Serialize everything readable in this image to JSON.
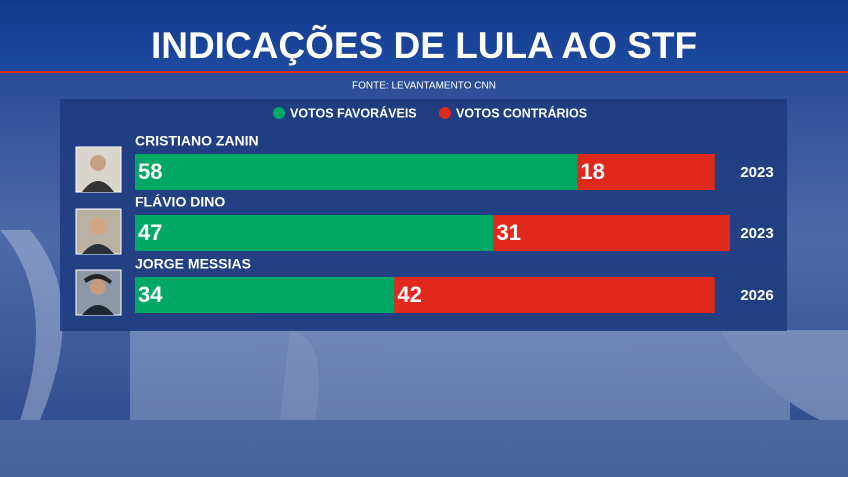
{
  "chart_data": {
    "type": "stacked-bar-horizontal",
    "title": "INDICAÇÕES DE LULA AO STF",
    "subtitle": "FONTE: LEVANTAMENTO CNN",
    "categories": [
      "CRISTIANO ZANIN",
      "FLÁVIO DINO",
      "JORGE MESSIAS"
    ],
    "years": [
      2023,
      2023,
      2026
    ],
    "series": [
      {
        "name": "VOTOS FAVORÁVEIS",
        "color": "#00a865",
        "values": [
          58,
          47,
          34
        ]
      },
      {
        "name": "VOTOS CONTRÁRIOS",
        "color": "#e0281c",
        "values": [
          18,
          31,
          42
        ]
      }
    ]
  }
}
